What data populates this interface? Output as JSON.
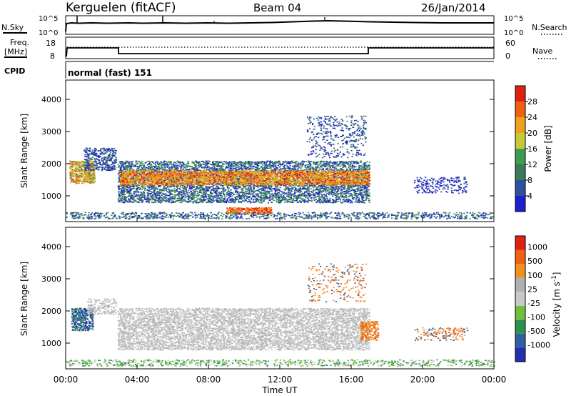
{
  "header": {
    "station": "Kerguelen (fitACF)",
    "beam": "Beam 04",
    "date": "26/Jan/2014"
  },
  "strip_labels": {
    "nsky": "N.Sky",
    "nsearch": "N.Search",
    "freq_line1": "Freq.",
    "freq_line2": "[MHz]",
    "nave": "Nave",
    "cpid": "CPID",
    "cpid_value": "normal (fast) 151",
    "noise_tick_top": "10^5",
    "noise_tick_bottom": "10^0",
    "freq_ticks": [
      "18",
      "8"
    ],
    "nave_ticks": [
      "60",
      "0"
    ]
  },
  "colors": {
    "power": [
      "#1f1fd0",
      "#2f4fa0",
      "#3a7a5a",
      "#3f9b4f",
      "#c8c83a",
      "#f0a020",
      "#f06010",
      "#e02010"
    ],
    "velocity": [
      "#2030b0",
      "#3060a0",
      "#2f8f4f",
      "#70c040",
      "#c8c8c8",
      "#b0b0b0",
      "#f09020",
      "#f06010",
      "#e02010"
    ]
  },
  "chart_data": [
    {
      "type": "heatmap",
      "name": "power",
      "ylabel": "Slant Range [km]",
      "yticks": [
        "1000",
        "2000",
        "3000",
        "4000"
      ],
      "ylim": [
        200,
        4600
      ],
      "xlim": [
        "00:00",
        "24:00"
      ],
      "colorbar_label": "Power [dB]",
      "colorbar_ticks": [
        "4",
        "8",
        "12",
        "16",
        "20",
        "24",
        "28"
      ],
      "colorbar_range": [
        0,
        32
      ]
    },
    {
      "type": "heatmap",
      "name": "velocity",
      "ylabel": "Slant Range [km]",
      "yticks": [
        "1000",
        "2000",
        "3000",
        "4000"
      ],
      "ylim": [
        200,
        4600
      ],
      "xlim": [
        "00:00",
        "24:00"
      ],
      "xlabel": "Time UT",
      "xticks": [
        "00:00",
        "04:00",
        "08:00",
        "12:00",
        "16:00",
        "20:00",
        "00:00"
      ],
      "colorbar_label": "Velocity [m s^-1]",
      "colorbar_ticks": [
        "1000",
        "500",
        "100",
        "25",
        "-25",
        "-100",
        "-500",
        "-1000"
      ]
    }
  ]
}
